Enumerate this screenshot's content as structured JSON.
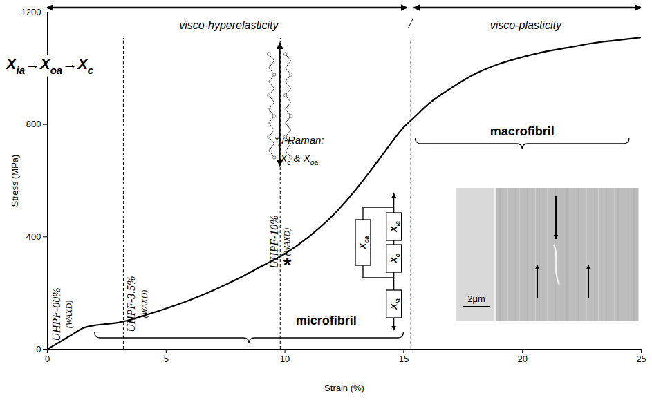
{
  "chart_data": {
    "type": "line",
    "x_label": "Strain (%)",
    "y_label": "Stress (MPa)",
    "x": [
      0,
      0.5,
      1,
      1.5,
      2,
      2.5,
      3,
      3.5,
      4,
      5,
      6,
      7,
      8,
      9,
      10,
      11,
      12,
      13,
      14,
      15,
      15.5,
      16,
      17,
      18,
      19,
      20,
      21,
      22,
      23,
      24,
      25
    ],
    "values": [
      0,
      25,
      50,
      75,
      85,
      90,
      95,
      105,
      118,
      145,
      175,
      210,
      250,
      295,
      340,
      400,
      475,
      570,
      680,
      790,
      830,
      870,
      930,
      980,
      1015,
      1040,
      1060,
      1075,
      1090,
      1100,
      1110
    ],
    "color": "#000000",
    "xlim": [
      0,
      25
    ],
    "xticks": [
      0,
      5,
      10,
      15,
      20,
      25
    ],
    "ylim": [
      0,
      1200
    ],
    "yticks": [
      0,
      400,
      800,
      1200
    ],
    "grid": false,
    "regions": [
      {
        "label": "visco-hyperelasticity",
        "from": 0,
        "to": 15.3
      },
      {
        "label": "visco-plasticity",
        "from": 15.3,
        "to": 25
      }
    ],
    "reference_lines": [
      3.2,
      9.8,
      15.3
    ],
    "samples": [
      {
        "label": "UHPF-00%",
        "method": "(WAXD)"
      },
      {
        "label": "UHPF-3.5%",
        "method": "(WAXD)"
      },
      {
        "label": "UHPF-10%",
        "method": "(WAXD)"
      }
    ],
    "phase_sequence": "Xia→Xoa→Xc",
    "raman_point": {
      "x": 10.1,
      "y": 300,
      "label": "*"
    },
    "raman_note": [
      "*μ-Raman:",
      "Xc & Xoa"
    ],
    "brackets": [
      {
        "label": "microfibril",
        "from": 2,
        "to": 15
      },
      {
        "label": "macrofibril",
        "from": 15.5,
        "to": 24.5
      }
    ],
    "model_elements": {
      "parallel": "Xoa",
      "series": [
        "Xia",
        "Xc",
        "Xia"
      ]
    },
    "inset_scale": "2μm"
  }
}
